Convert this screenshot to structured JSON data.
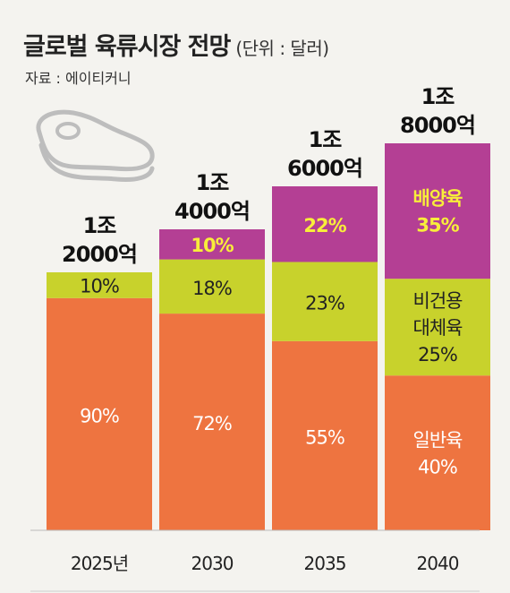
{
  "title": "글로벌 육류시장 전망",
  "unit_label": "(단위 : 달러)",
  "source": "자료 : 에이티커니",
  "chart_data": {
    "type": "bar",
    "stacked": true,
    "categories": [
      "2025년",
      "2030",
      "2035",
      "2040"
    ],
    "totals": [
      12000,
      14000,
      16000,
      18000
    ],
    "total_labels": [
      [
        "1조",
        "2000억"
      ],
      [
        "1조",
        "4000억"
      ],
      [
        "1조",
        "6000억"
      ],
      [
        "1조",
        "8000억"
      ]
    ],
    "series": [
      {
        "name": "일반육",
        "label_lines": [
          "일반육"
        ],
        "color": "#ee7440",
        "shares": [
          90,
          72,
          55,
          40
        ],
        "labels": [
          "90%",
          "72%",
          "55%",
          "40%"
        ]
      },
      {
        "name": "비건용 대체육",
        "label_lines": [
          "비건용",
          "대체육"
        ],
        "color": "#c8d22c",
        "shares": [
          10,
          18,
          23,
          25
        ],
        "labels": [
          "10%",
          "18%",
          "23%",
          "25%"
        ]
      },
      {
        "name": "배양육",
        "label_lines": [
          "배양육"
        ],
        "color": "#b43f94",
        "shares": [
          0,
          10,
          22,
          35
        ],
        "labels": [
          "",
          "10%",
          "22%",
          "35%"
        ]
      }
    ],
    "ylim": [
      0,
      18000
    ],
    "legend": "inline-on-last-bar",
    "grid": false
  }
}
